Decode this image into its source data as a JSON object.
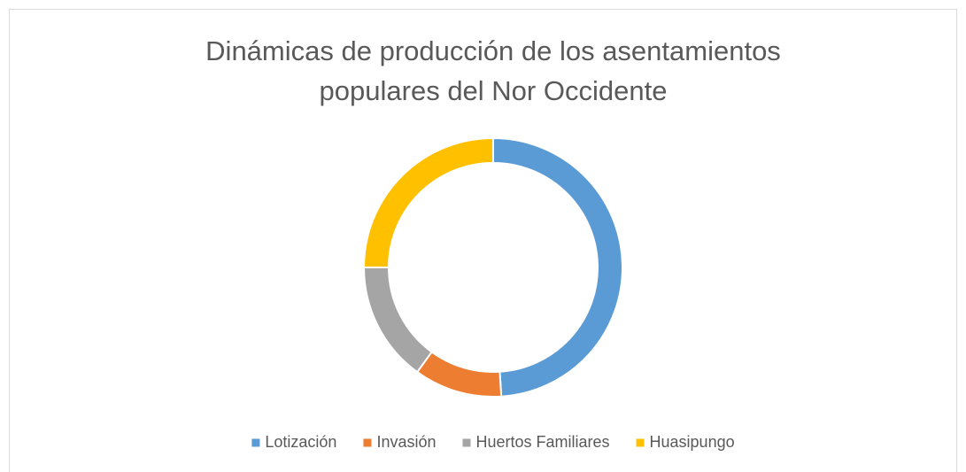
{
  "chart_data": {
    "type": "donut",
    "title_lines": [
      "Dinámicas de producción de los asentamientos",
      "populares del Nor Occidente"
    ],
    "categories": [
      "Lotización",
      "Invasión",
      "Huertos Familiares",
      "Huasipungo"
    ],
    "values": [
      49,
      11,
      15,
      25
    ],
    "colors": [
      "#5b9bd5",
      "#ed7d31",
      "#a5a5a5",
      "#ffc000"
    ],
    "legend": "bottom"
  }
}
